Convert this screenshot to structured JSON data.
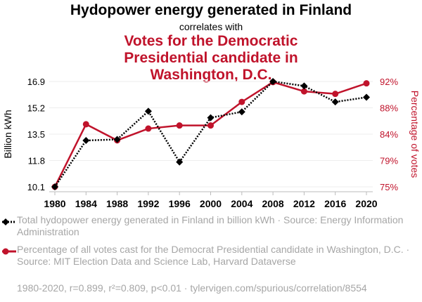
{
  "chart_data": {
    "type": "line",
    "title": "Hydopower energy generated in Finland",
    "subtitle": "correlates with",
    "title2": "Votes for the Democratic Presidential candidate in Washington, D.C.",
    "x": [
      1980,
      1984,
      1988,
      1992,
      1996,
      2000,
      2004,
      2008,
      2012,
      2016,
      2020
    ],
    "xticks": [
      "1980",
      "1984",
      "1988",
      "1992",
      "1996",
      "2000",
      "2004",
      "2008",
      "2012",
      "2016",
      "2020"
    ],
    "ylabel_left": "Billion kWh",
    "ylabel_right": "Percentage of votes",
    "yticks_left": [
      "16.9",
      "15.2",
      "13.5",
      "11.8",
      "10.1"
    ],
    "yticks_right": [
      "92%",
      "88%",
      "84%",
      "79%",
      "75%"
    ],
    "ylim_left": [
      10.1,
      16.9
    ],
    "ylim_right": [
      75,
      92
    ],
    "series": [
      {
        "name": "Total hydopower energy generated in Finland in billion kWh · Source: Energy Information Administration",
        "axis": "left",
        "color": "#000000",
        "style": "dotted",
        "marker": "diamond",
        "values": [
          10.1,
          13.09,
          13.16,
          14.98,
          11.7,
          14.56,
          14.94,
          16.9,
          16.61,
          15.58,
          15.88
        ]
      },
      {
        "name": "Percentage of all votes cast for the Democrat Presidential candidate in Washington, D.C. · Source: MIT Election Data and Science Lab, Harvard Dataverse",
        "axis": "right",
        "color": "#c0132b",
        "style": "solid",
        "marker": "circle",
        "values": [
          75.0,
          85.1,
          82.5,
          84.4,
          84.9,
          84.9,
          88.7,
          91.9,
          90.4,
          90.0,
          91.7
        ]
      }
    ],
    "footer": "1980-2020, r=0.899, r²=0.809, p<0.01 · tylervigen.com/spurious/correlation/8554"
  }
}
